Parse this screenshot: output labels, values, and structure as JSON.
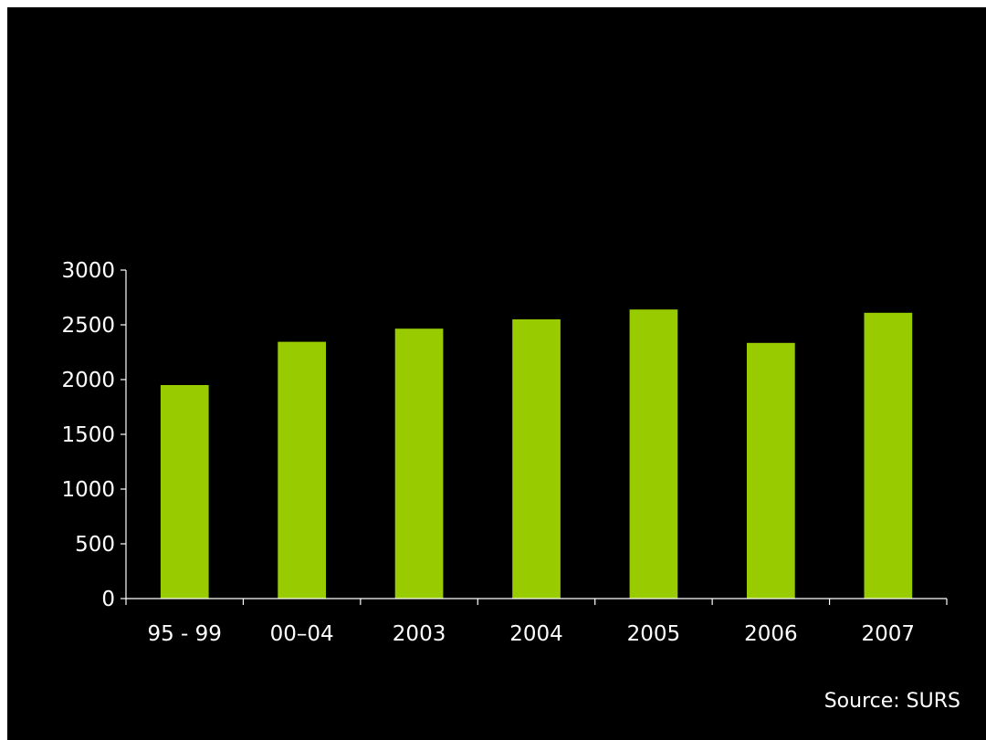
{
  "colors": {
    "background": "#000000",
    "bar": "#99cc00",
    "axis": "#ffffff",
    "text": "#ffffff"
  },
  "chart_data": {
    "type": "bar",
    "categories": [
      "95 - 99",
      "00–04",
      "2003",
      "2004",
      "2005",
      "2006",
      "2007"
    ],
    "values": [
      1950,
      2345,
      2465,
      2550,
      2640,
      2335,
      2610
    ],
    "ylim": [
      0,
      3000
    ],
    "yticks": [
      0,
      500,
      1000,
      1500,
      2000,
      2500,
      3000
    ],
    "grid": false,
    "legend": "none",
    "title": "",
    "xlabel": "",
    "ylabel": ""
  },
  "footer": {
    "source": "Source: SURS"
  }
}
